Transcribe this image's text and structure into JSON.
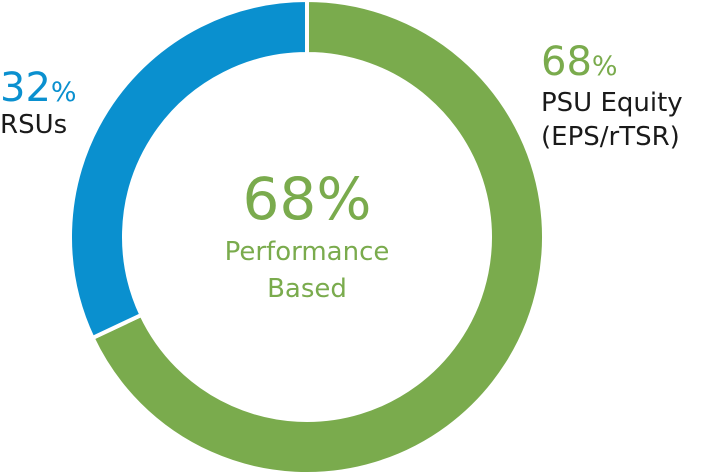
{
  "colors": {
    "psu": "#7aab4d",
    "rsu": "#0a90cf",
    "center": "#7aab4d"
  },
  "center": {
    "value": "68%",
    "line1": "Performance",
    "line2": "Based"
  },
  "chart_data": {
    "type": "pie",
    "donut": true,
    "title": "",
    "legend": "none",
    "series": [
      {
        "values": [
          68,
          32
        ]
      }
    ],
    "slices": [
      {
        "value": 68,
        "pct_num": "68",
        "pct_sign": "%",
        "label_line1": "PSU Equity",
        "label_line2": "(EPS/rTSR)",
        "color": "#7aab4d"
      },
      {
        "value": 32,
        "pct_num": "32",
        "pct_sign": "%",
        "label_line1": "RSUs",
        "label_line2": "",
        "color": "#0a90cf"
      }
    ]
  }
}
